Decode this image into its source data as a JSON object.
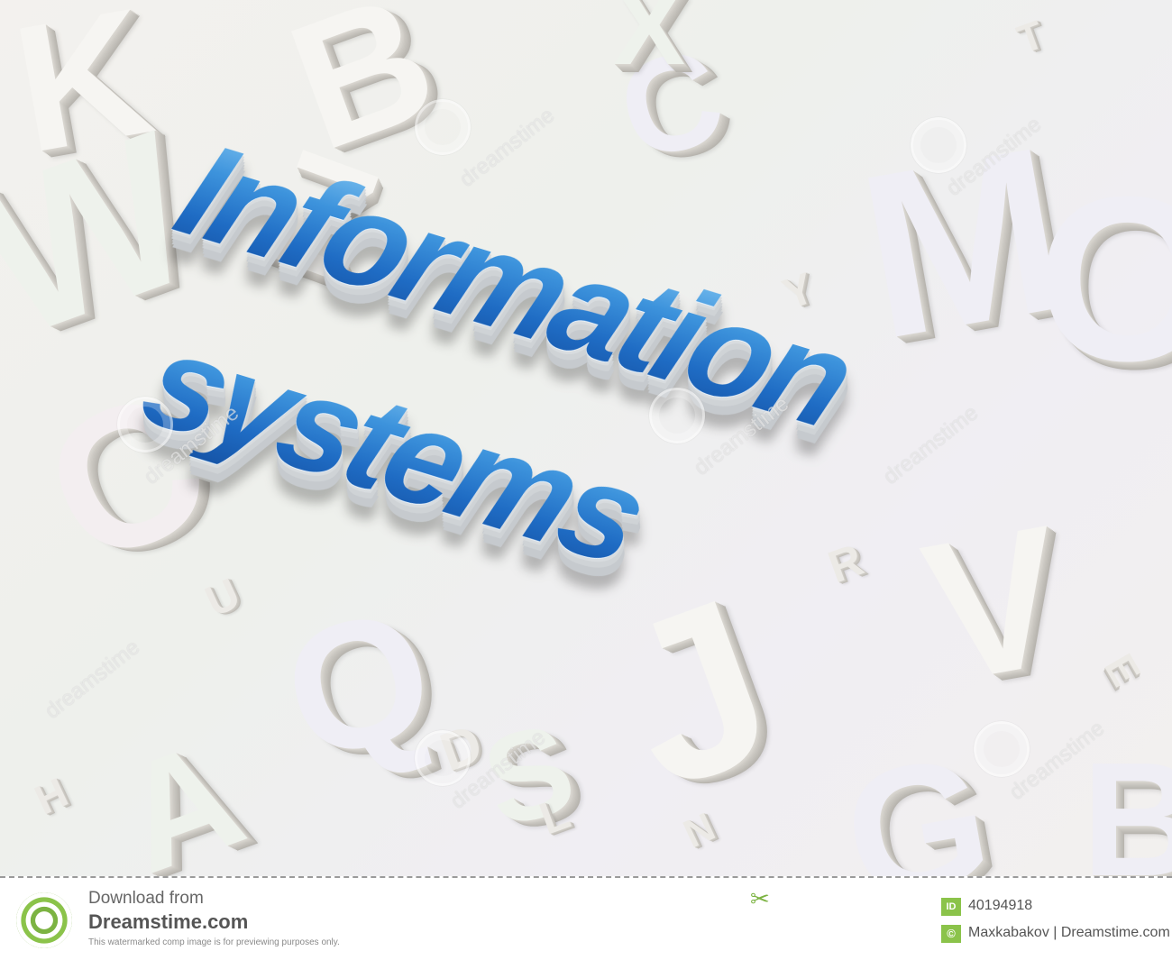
{
  "headline": {
    "line1": "Information",
    "line2": "systems"
  },
  "background_letters": [
    "B",
    "C",
    "X",
    "K",
    "W",
    "M",
    "Z",
    "O",
    "V",
    "Q",
    "G",
    "C",
    "S",
    "J",
    "A",
    "B",
    "D",
    "N",
    "U",
    "E",
    "R",
    "T",
    "Y",
    "L",
    "H"
  ],
  "watermark": {
    "text": "dreamstime"
  },
  "footer": {
    "download_from": "Download from",
    "site": "Dreamstime.com",
    "note": "This watermarked comp image is for previewing purposes only.",
    "id_label": "ID",
    "id_value": "40194918",
    "copyright_symbol": "©",
    "credit": "Maxkabakov | Dreamstime.com"
  },
  "icons": {
    "logo": "dreamstime-logo-icon",
    "scissors": "scissors-icon"
  },
  "colors": {
    "headline_blue": "#2b7fd4",
    "brand_green": "#8bc34a"
  }
}
